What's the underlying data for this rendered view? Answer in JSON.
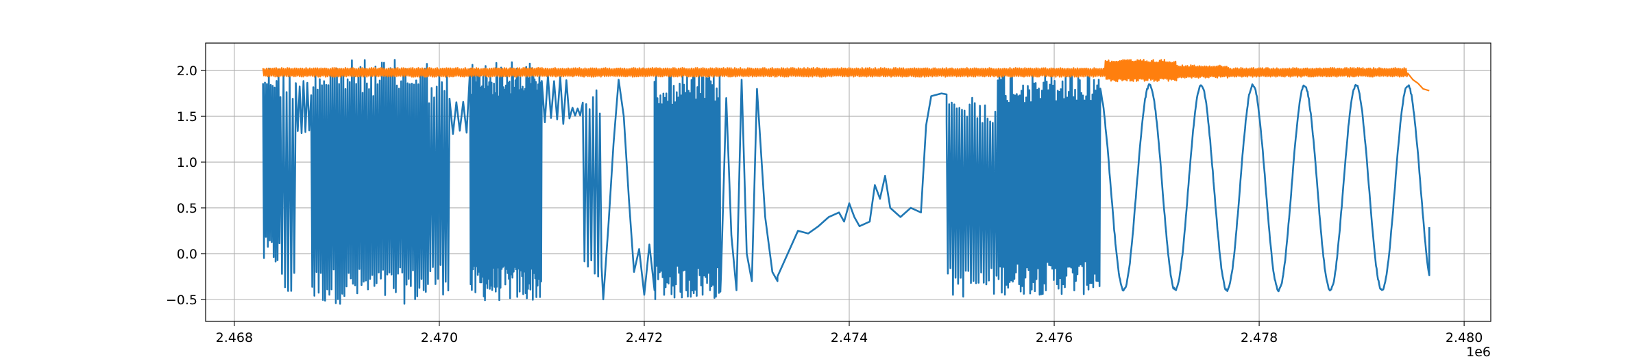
{
  "chart_data": {
    "type": "line",
    "title": "",
    "xlabel": "",
    "ylabel": "",
    "x_offset_label": "1e6",
    "xlim": [
      2.46772,
      2.48026
    ],
    "ylim": [
      -0.74,
      2.3
    ],
    "grid": true,
    "x_ticks": [
      2.468,
      2.47,
      2.472,
      2.474,
      2.476,
      2.478,
      2.48
    ],
    "x_tick_labels": [
      "2.468",
      "2.470",
      "2.472",
      "2.474",
      "2.476",
      "2.478",
      "2.480"
    ],
    "y_ticks": [
      -0.5,
      0.0,
      0.5,
      1.0,
      1.5,
      2.0
    ],
    "y_tick_labels": [
      "−0.5",
      "0.0",
      "0.5",
      "1.0",
      "1.5",
      "2.0"
    ],
    "series": [
      {
        "color": "#1f77b4",
        "x_range": [
          2.46828,
          2.47966
        ],
        "segments": [
          {
            "kind": "noise",
            "x": [
              2.46828,
              2.46845
            ],
            "lo": -0.15,
            "hi": 2.08,
            "n": 18
          },
          {
            "kind": "noise",
            "x": [
              2.46845,
              2.4686
            ],
            "lo": -0.55,
            "hi": 2.05,
            "n": 10
          },
          {
            "kind": "noise",
            "x": [
              2.4686,
              2.46875
            ],
            "lo": 1.3,
            "hi": 1.9,
            "n": 8
          },
          {
            "kind": "noise",
            "x": [
              2.46875,
              2.4699
            ],
            "lo": -0.55,
            "hi": 2.12,
            "n": 110
          },
          {
            "kind": "noise",
            "x": [
              2.4699,
              2.4701
            ],
            "lo": -0.45,
            "hi": 2.0,
            "n": 16
          },
          {
            "kind": "noise",
            "x": [
              2.4701,
              2.4703
            ],
            "lo": 1.3,
            "hi": 1.7,
            "n": 6
          },
          {
            "kind": "noise",
            "x": [
              2.4703,
              2.471
            ],
            "lo": -0.52,
            "hi": 2.1,
            "n": 120
          },
          {
            "kind": "noise",
            "x": [
              2.471,
              2.4713
            ],
            "lo": 1.4,
            "hi": 1.95,
            "n": 10
          },
          {
            "kind": "noise",
            "x": [
              2.4713,
              2.4714
            ],
            "lo": 1.5,
            "hi": 1.6,
            "n": 4
          },
          {
            "kind": "noise",
            "x": [
              2.4714,
              2.4716
            ],
            "lo": -0.3,
            "hi": 1.8,
            "n": 12
          },
          {
            "kind": "wave",
            "x": [
              2.4716,
              2.47185
            ],
            "points": [
              [
                2.4716,
                -0.5
              ],
              [
                2.47165,
                0.3
              ],
              [
                2.4717,
                1.2
              ],
              [
                2.47175,
                1.9
              ],
              [
                2.4718,
                1.5
              ],
              [
                2.47185,
                0.6
              ]
            ]
          },
          {
            "kind": "wave",
            "x": [
              2.47185,
              2.4721
            ],
            "points": [
              [
                2.47185,
                0.6
              ],
              [
                2.4719,
                -0.2
              ],
              [
                2.47195,
                0.05
              ],
              [
                2.472,
                -0.45
              ],
              [
                2.47205,
                0.1
              ],
              [
                2.4721,
                -0.4
              ]
            ]
          },
          {
            "kind": "noise",
            "x": [
              2.4721,
              2.47275
            ],
            "lo": -0.5,
            "hi": 2.0,
            "n": 90
          },
          {
            "kind": "wave",
            "x": [
              2.47275,
              2.4733
            ],
            "points": [
              [
                2.47275,
                -0.2
              ],
              [
                2.4728,
                1.7
              ],
              [
                2.47285,
                0.2
              ],
              [
                2.4729,
                -0.4
              ],
              [
                2.47295,
                1.9
              ],
              [
                2.473,
                0.0
              ],
              [
                2.47305,
                -0.3
              ],
              [
                2.4731,
                1.8
              ],
              [
                2.47318,
                0.4
              ],
              [
                2.47325,
                -0.2
              ],
              [
                2.4733,
                -0.3
              ]
            ]
          },
          {
            "kind": "wave",
            "x": [
              2.4733,
              2.4748
            ],
            "points": [
              [
                2.4733,
                -0.25
              ],
              [
                2.4734,
                0.0
              ],
              [
                2.4735,
                0.25
              ],
              [
                2.4736,
                0.22
              ],
              [
                2.4737,
                0.3
              ],
              [
                2.4738,
                0.4
              ],
              [
                2.4739,
                0.45
              ],
              [
                2.47395,
                0.35
              ],
              [
                2.474,
                0.55
              ],
              [
                2.47405,
                0.4
              ],
              [
                2.4741,
                0.3
              ],
              [
                2.4742,
                0.35
              ],
              [
                2.47425,
                0.75
              ],
              [
                2.4743,
                0.6
              ],
              [
                2.47435,
                0.85
              ],
              [
                2.4744,
                0.5
              ],
              [
                2.4745,
                0.4
              ],
              [
                2.4746,
                0.5
              ],
              [
                2.4747,
                0.45
              ],
              [
                2.47475,
                1.4
              ],
              [
                2.4748,
                1.72
              ]
            ]
          },
          {
            "kind": "wave",
            "x": [
              2.4748,
              2.47495
            ],
            "points": [
              [
                2.4748,
                1.72
              ],
              [
                2.4749,
                1.75
              ],
              [
                2.47495,
                1.74
              ]
            ]
          },
          {
            "kind": "noise",
            "x": [
              2.47495,
              2.47545
            ],
            "lo": -0.48,
            "hi": 1.75,
            "n": 40
          },
          {
            "kind": "noise",
            "x": [
              2.47545,
              2.47645
            ],
            "lo": -0.45,
            "hi": 2.0,
            "n": 130
          },
          {
            "kind": "sine",
            "x": [
              2.47645,
              2.47966
            ],
            "center": 0.72,
            "amp": 1.12,
            "period": 0.000504,
            "phase_x": 2.47693,
            "end": 0.29
          }
        ]
      },
      {
        "color": "#ff7f0e",
        "x_range": [
          2.46828,
          2.47966
        ],
        "segments": [
          {
            "kind": "noise",
            "x": [
              2.46828,
              2.4765
            ],
            "lo": 1.93,
            "hi": 2.03,
            "n": 900
          },
          {
            "kind": "noise",
            "x": [
              2.4765,
              2.4772
            ],
            "lo": 1.88,
            "hi": 2.12,
            "n": 90
          },
          {
            "kind": "noise",
            "x": [
              2.4772,
              2.4777
            ],
            "lo": 1.92,
            "hi": 2.06,
            "n": 60
          },
          {
            "kind": "noise",
            "x": [
              2.4777,
              2.47945
            ],
            "lo": 1.93,
            "hi": 2.03,
            "n": 200
          },
          {
            "kind": "wave",
            "x": [
              2.47945,
              2.47966
            ],
            "points": [
              [
                2.47945,
                1.97
              ],
              [
                2.4795,
                1.9
              ],
              [
                2.47955,
                1.86
              ],
              [
                2.4796,
                1.8
              ],
              [
                2.47966,
                1.78
              ]
            ]
          }
        ]
      }
    ]
  }
}
